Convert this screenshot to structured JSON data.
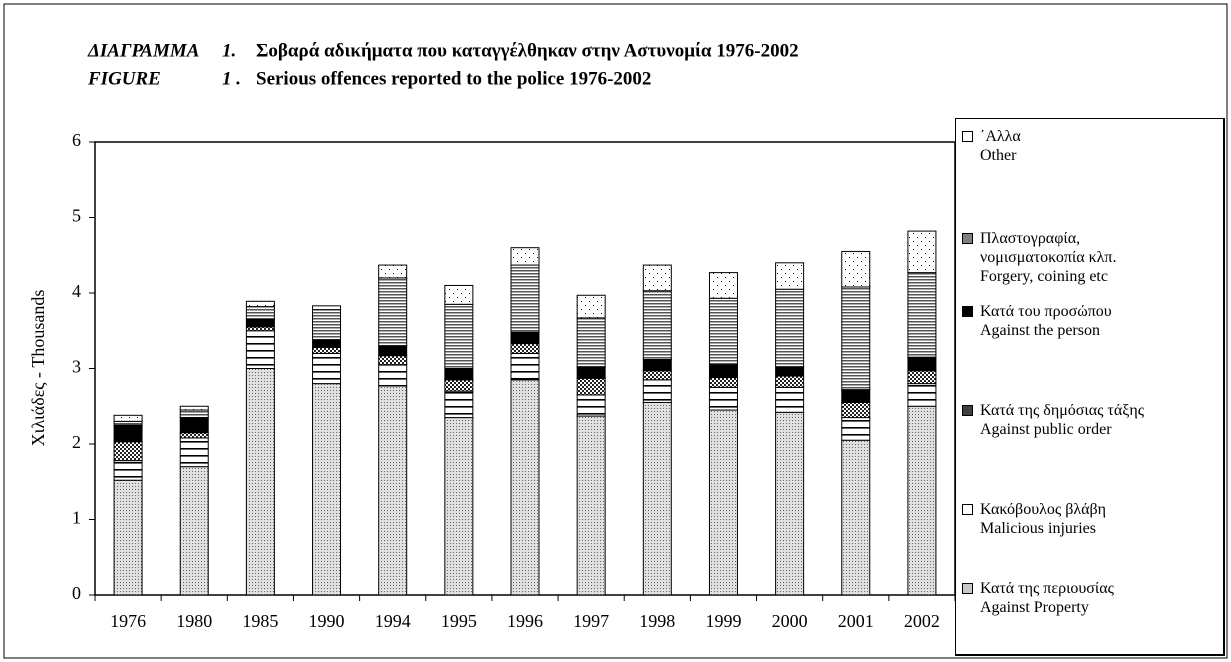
{
  "chart_data": {
    "type": "stacked-bar",
    "title_gr": [
      "ΔΙΑΓΡΑΜΜΑ",
      "1.",
      "Σοβαρά αδικήματα που καταγγέλθηκαν στην Αστυνομία  1976-2002"
    ],
    "title_en": [
      "FIGURE",
      "1 .",
      "Serious offences reported to the police  1976-2002"
    ],
    "ylabel": "Χιλιάδες - Thousands",
    "categories": [
      "1976",
      "1980",
      "1985",
      "1990",
      "1994",
      "1995",
      "1996",
      "1997",
      "1998",
      "1999",
      "2000",
      "2001",
      "2002"
    ],
    "ylim": [
      0,
      6
    ],
    "yticks": [
      0,
      1,
      2,
      3,
      4,
      5,
      6
    ],
    "series": [
      {
        "name": "Κατά της περιουσίας\nAgainst Property",
        "color": "#c8c8c8",
        "pattern": "dense-dots",
        "values": [
          1.52,
          1.7,
          3.0,
          2.8,
          2.77,
          2.35,
          2.85,
          2.37,
          2.55,
          2.45,
          2.42,
          2.05,
          2.5
        ]
      },
      {
        "name": "Κακόβουλος βλάβη\nMalicious injuries",
        "color": "#ffffff",
        "pattern": "wide-lines",
        "values": [
          0.26,
          0.38,
          0.5,
          0.4,
          0.28,
          0.35,
          0.35,
          0.28,
          0.3,
          0.3,
          0.33,
          0.3,
          0.3
        ]
      },
      {
        "name": "Κατά της δημόσιας τάξης\nAgainst public order",
        "color": "#404040",
        "pattern": "checker",
        "values": [
          0.25,
          0.07,
          0.05,
          0.08,
          0.12,
          0.15,
          0.13,
          0.22,
          0.12,
          0.13,
          0.15,
          0.2,
          0.17
        ]
      },
      {
        "name": "Κατά του προσώπου\nAgainst the person",
        "color": "#000000",
        "pattern": "solid",
        "values": [
          0.22,
          0.2,
          0.1,
          0.1,
          0.13,
          0.15,
          0.15,
          0.15,
          0.15,
          0.17,
          0.12,
          0.17,
          0.18
        ]
      },
      {
        "name": "Πλαστογραφία,\nνομισματοκοπία κλπ.\nForgery, coining etc",
        "color": "#808080",
        "pattern": "dense-lines",
        "values": [
          0.05,
          0.1,
          0.17,
          0.4,
          0.9,
          0.85,
          0.89,
          0.65,
          0.91,
          0.88,
          1.03,
          1.36,
          1.12
        ]
      },
      {
        "name": "΄Αλλα\nOther",
        "color": "#ffffff",
        "pattern": "sparse-dots",
        "values": [
          0.08,
          0.05,
          0.07,
          0.05,
          0.17,
          0.25,
          0.23,
          0.3,
          0.34,
          0.34,
          0.35,
          0.47,
          0.55
        ]
      }
    ]
  }
}
